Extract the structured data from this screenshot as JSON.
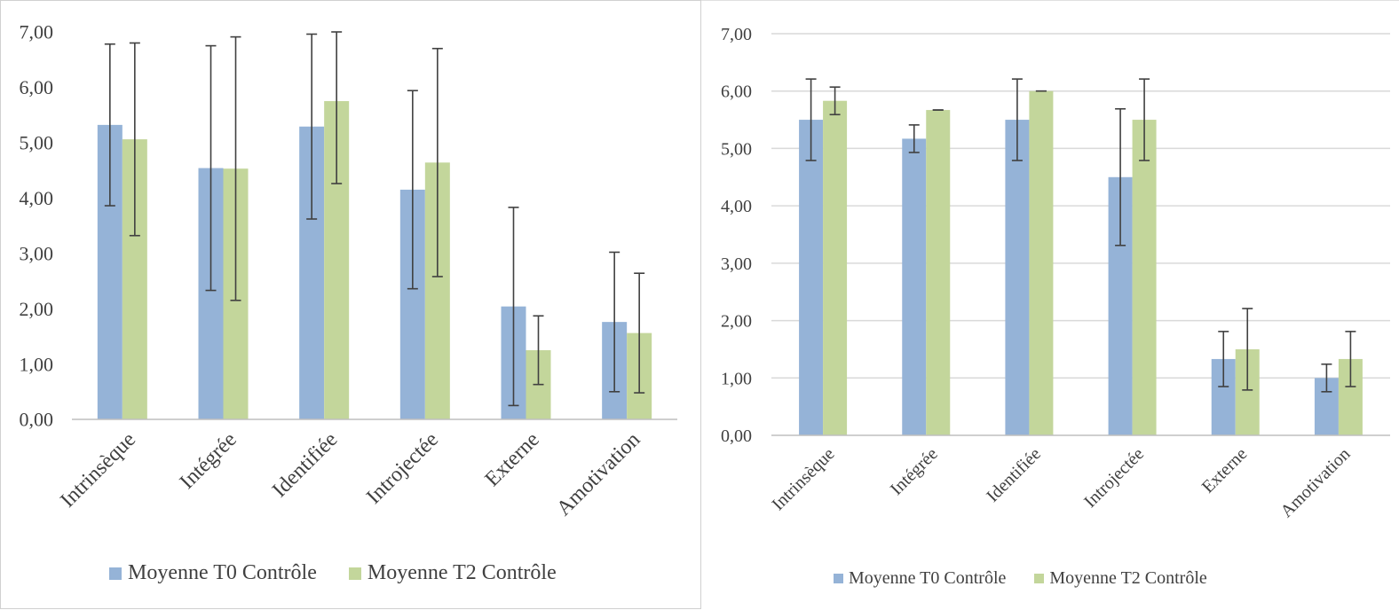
{
  "colors": {
    "series0": "#95b3d7",
    "series1": "#c3d69b",
    "error_bar": "#404040",
    "grid": "#d9d9d9",
    "axis": "#bfbfbf"
  },
  "chart_data": [
    {
      "type": "bar",
      "categories": [
        "Intrinsèque",
        "Intégrée",
        "Identifiée",
        "Introjectée",
        "Externe",
        "Amotivation"
      ],
      "series": [
        {
          "name": "Moyenne T0 Contrôle",
          "values": [
            5.32,
            4.54,
            5.29,
            4.15,
            2.04,
            1.76
          ],
          "error": [
            1.46,
            2.21,
            1.67,
            1.79,
            1.79,
            1.26
          ]
        },
        {
          "name": "Moyenne T2 Contrôle",
          "values": [
            5.06,
            4.53,
            5.75,
            4.64,
            1.25,
            1.56
          ],
          "error": [
            1.74,
            2.38,
            1.49,
            2.06,
            0.62,
            1.08
          ]
        }
      ],
      "ylim": [
        0,
        7
      ],
      "yticks": [
        "0,00",
        "1,00",
        "2,00",
        "3,00",
        "4,00",
        "5,00",
        "6,00",
        "7,00"
      ],
      "grid": false,
      "legend": "bottom"
    },
    {
      "type": "bar",
      "categories": [
        "Intrinsèque",
        "Intégrée",
        "Identifiée",
        "Introjectée",
        "Externe",
        "Amotivation"
      ],
      "series": [
        {
          "name": "Moyenne T0 Contrôle",
          "values": [
            5.5,
            5.17,
            5.5,
            4.5,
            1.33,
            1.0
          ],
          "error": [
            0.71,
            0.24,
            0.71,
            1.19,
            0.48,
            0.24
          ]
        },
        {
          "name": "Moyenne T2 Contrôle",
          "values": [
            5.83,
            5.67,
            6.0,
            5.5,
            1.5,
            1.33
          ],
          "error": [
            0.24,
            0.0,
            0.0,
            0.71,
            0.71,
            0.48
          ]
        }
      ],
      "ylim": [
        0,
        7
      ],
      "yticks": [
        "0,00",
        "1,00",
        "2,00",
        "3,00",
        "4,00",
        "5,00",
        "6,00",
        "7,00"
      ],
      "grid": true,
      "legend": "bottom"
    }
  ]
}
